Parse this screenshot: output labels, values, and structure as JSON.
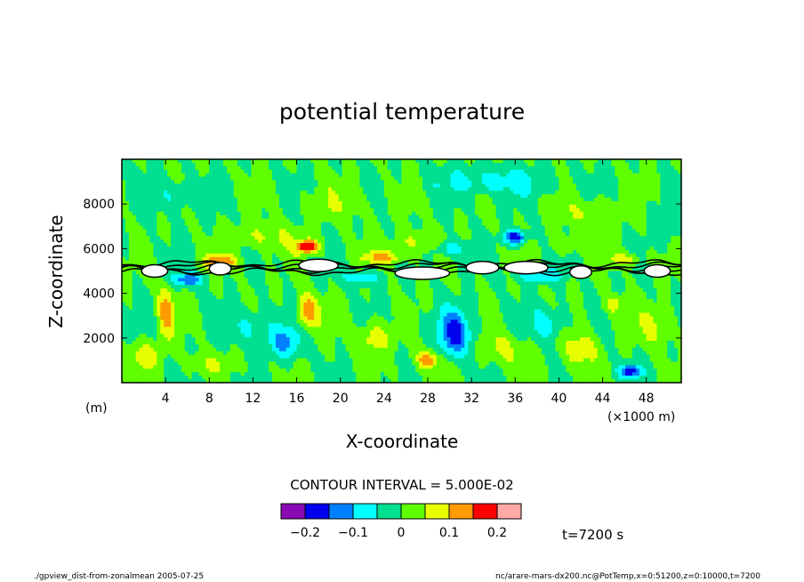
{
  "chart_data": {
    "type": "heatmap",
    "title": "potential temperature",
    "xlabel": "X-coordinate",
    "ylabel": "Z-coordinate",
    "x_unit": "(×1000 m)",
    "y_unit": "(m)",
    "xlim": [
      0,
      51.2
    ],
    "ylim": [
      0,
      10000
    ],
    "x_ticks": [
      4,
      8,
      12,
      16,
      20,
      24,
      28,
      32,
      36,
      40,
      44,
      48
    ],
    "y_ticks": [
      2000,
      4000,
      6000,
      8000
    ],
    "x_tick_labels": [
      "4",
      "8",
      "12",
      "16",
      "20",
      "24",
      "28",
      "32",
      "36",
      "40",
      "44",
      "48"
    ],
    "y_tick_labels": [
      "2000",
      "4000",
      "6000",
      "8000"
    ],
    "contour_interval_text": "CONTOUR INTERVAL = 5.000E-02",
    "contour_interval": 0.05,
    "levels": [
      -0.25,
      -0.2,
      -0.15,
      -0.1,
      -0.05,
      0,
      0.05,
      0.1,
      0.15,
      0.2,
      0.25
    ],
    "colorbar_colors": [
      "#8a0ab4",
      "#0000ee",
      "#0080ff",
      "#00ffff",
      "#00e090",
      "#60ff00",
      "#e8ff00",
      "#ff9a00",
      "#ff0000",
      "#ffa8a8"
    ],
    "colorbar_ticks": [
      -0.2,
      -0.1,
      0,
      0.1,
      0.2
    ],
    "colorbar_tick_labels": [
      "−0.2",
      "−0.1",
      "0",
      "0.1",
      "0.2"
    ],
    "time_text": "t=7200 s"
  },
  "footer": {
    "left": "./gpview_dist-from-zonalmean  2005-07-25",
    "right": "nc/arare-mars-dx200.nc@PotTemp,x=0:51200,z=0:10000,t=7200"
  }
}
